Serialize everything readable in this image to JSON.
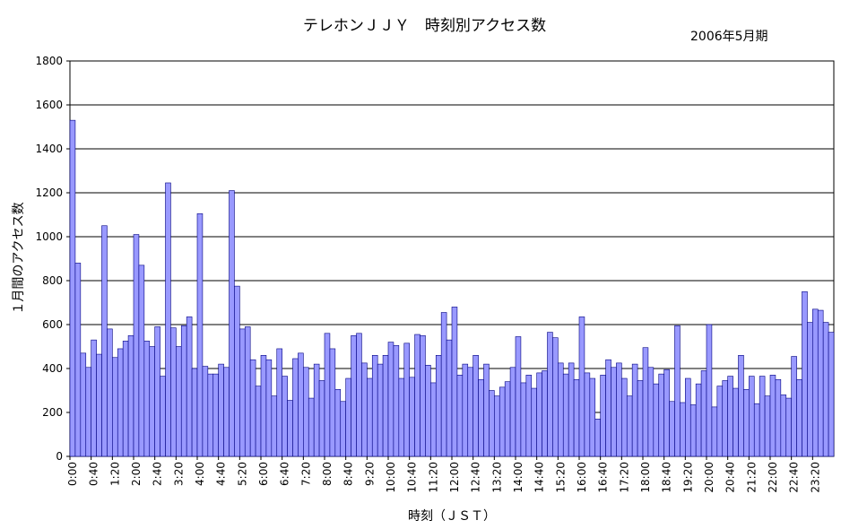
{
  "chart_data": {
    "type": "bar",
    "title": "テレホンＪＪＹ　時刻別アクセス数",
    "subtitle": "2006年5月期",
    "xlabel": "時刻（ＪＳＴ）",
    "ylabel": "１月間のアクセス数",
    "ylim": [
      0,
      1800
    ],
    "yticks": [
      0,
      200,
      400,
      600,
      800,
      1000,
      1200,
      1400,
      1600,
      1800
    ],
    "grid": true,
    "bar_color": "#9999FF",
    "bar_edge_color": "#000080",
    "xtick_labels": [
      "0:00",
      "0:40",
      "1:20",
      "2:00",
      "2:40",
      "3:20",
      "4:00",
      "4:40",
      "5:20",
      "6:00",
      "6:40",
      "7:20",
      "8:00",
      "8:40",
      "9:20",
      "10:00",
      "10:40",
      "11:20",
      "12:00",
      "12:40",
      "13:20",
      "14:00",
      "14:40",
      "15:20",
      "16:00",
      "16:40",
      "17:20",
      "18:00",
      "18:40",
      "19:20",
      "20:00",
      "20:40",
      "21:20",
      "22:00",
      "22:40",
      "23:20"
    ],
    "values": [
      1530,
      880,
      470,
      405,
      530,
      465,
      1050,
      580,
      450,
      490,
      525,
      550,
      1010,
      870,
      525,
      500,
      590,
      365,
      1245,
      585,
      500,
      595,
      635,
      400,
      1105,
      410,
      375,
      375,
      420,
      405,
      1210,
      775,
      580,
      590,
      440,
      320,
      460,
      440,
      275,
      490,
      365,
      255,
      445,
      470,
      405,
      265,
      420,
      345,
      560,
      490,
      305,
      250,
      355,
      550,
      560,
      425,
      355,
      460,
      420,
      460,
      520,
      505,
      355,
      515,
      360,
      555,
      550,
      415,
      335,
      460,
      655,
      530,
      680,
      370,
      420,
      405,
      460,
      350,
      420,
      300,
      275,
      315,
      340,
      405,
      545,
      335,
      370,
      310,
      380,
      390,
      565,
      540,
      425,
      375,
      425,
      350,
      635,
      380,
      355,
      170,
      370,
      440,
      405,
      425,
      355,
      275,
      420,
      345,
      495,
      405,
      330,
      375,
      395,
      250,
      595,
      245,
      355,
      235,
      330,
      390,
      600,
      225,
      320,
      345,
      365,
      310,
      460,
      305,
      365,
      240,
      365,
      275,
      370,
      350,
      280,
      265,
      455,
      350,
      750,
      610,
      670,
      665,
      610,
      565
    ]
  }
}
